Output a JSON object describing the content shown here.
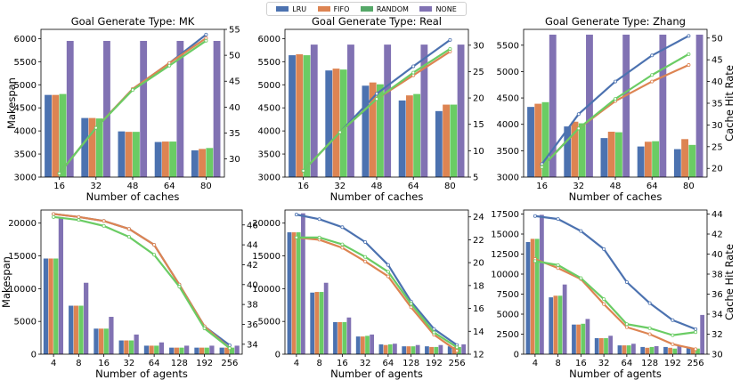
{
  "legend": {
    "placement": "top-center",
    "items": [
      {
        "label": "LRU",
        "color": "#4C72B0"
      },
      {
        "label": "FIFO",
        "color": "#DD8452"
      },
      {
        "label": "RANDOM",
        "color": "#55A868"
      },
      {
        "label": "NONE",
        "color": "#8172B3"
      }
    ]
  },
  "colors": {
    "LRU": "#4C72B0",
    "FIFO": "#DD8452",
    "RANDOM": "#55A868",
    "NONE": "#8172B3",
    "lineRANDOM": "#6ACC64"
  },
  "chart_data": [
    {
      "type": "bar+line",
      "title": "Goal Generate Type: MK",
      "xlabel": "Number of caches",
      "ylabel": "Makespan",
      "y2label": "",
      "categories": [
        "16",
        "32",
        "48",
        "64",
        "80"
      ],
      "ylim": [
        3000,
        6200
      ],
      "yticks": [
        3000,
        3500,
        4000,
        4500,
        5000,
        5500,
        6000
      ],
      "y2lim": [
        26.5,
        55
      ],
      "y2ticks": [
        30,
        35,
        40,
        45,
        50,
        55
      ],
      "bars": [
        {
          "name": "LRU",
          "values": [
            4780,
            4280,
            3990,
            3760,
            3580
          ]
        },
        {
          "name": "FIFO",
          "values": [
            4780,
            4280,
            3980,
            3770,
            3610
          ]
        },
        {
          "name": "RANDOM",
          "values": [
            4800,
            4270,
            3980,
            3770,
            3630
          ]
        },
        {
          "name": "NONE",
          "values": [
            5950,
            5950,
            5950,
            5950,
            5950
          ]
        }
      ],
      "lines": [
        {
          "name": "LRU",
          "values": [
            27.2,
            36,
            43.5,
            48.5,
            54.0
          ]
        },
        {
          "name": "FIFO",
          "values": [
            27.2,
            36,
            43.5,
            48.5,
            53.3
          ]
        },
        {
          "name": "RANDOM",
          "values": [
            27.2,
            36,
            43.3,
            48.0,
            52.8
          ]
        }
      ]
    },
    {
      "type": "bar+line",
      "title": "Goal Generate Type: Real",
      "xlabel": "Number of caches",
      "ylabel": "",
      "y2label": "",
      "categories": [
        "16",
        "32",
        "48",
        "64",
        "80"
      ],
      "ylim": [
        3000,
        6200
      ],
      "yticks": [
        3000,
        3500,
        4000,
        4500,
        5000,
        5500,
        6000
      ],
      "y2lim": [
        5,
        33
      ],
      "y2ticks": [
        5,
        10,
        15,
        20,
        25,
        30
      ],
      "bars": [
        {
          "name": "LRU",
          "values": [
            5640,
            5310,
            4980,
            4660,
            4430
          ]
        },
        {
          "name": "FIFO",
          "values": [
            5660,
            5350,
            5050,
            4770,
            4570
          ]
        },
        {
          "name": "RANDOM",
          "values": [
            5640,
            5330,
            5010,
            4800,
            4570
          ]
        },
        {
          "name": "NONE",
          "values": [
            5870,
            5870,
            5870,
            5870,
            5870
          ]
        }
      ],
      "lines": [
        {
          "name": "LRU",
          "values": [
            6.2,
            13.5,
            20.8,
            26.0,
            31.0
          ]
        },
        {
          "name": "FIFO",
          "values": [
            6.2,
            13.5,
            19.8,
            24.3,
            28.8
          ]
        },
        {
          "name": "RANDOM",
          "values": [
            6.2,
            13.5,
            19.8,
            24.8,
            29.3
          ]
        }
      ]
    },
    {
      "type": "bar+line",
      "title": "Goal Generate Type: Zhang",
      "xlabel": "Number of caches",
      "ylabel": "",
      "y2label": "Cache Hit Rate",
      "categories": [
        "16",
        "32",
        "48",
        "64",
        "80"
      ],
      "ylim": [
        3000,
        5800
      ],
      "yticks": [
        3000,
        3500,
        4000,
        4500,
        5000,
        5500
      ],
      "y2lim": [
        18,
        52
      ],
      "y2ticks": [
        20,
        25,
        30,
        35,
        40,
        45,
        50
      ],
      "bars": [
        {
          "name": "LRU",
          "values": [
            4330,
            3960,
            3740,
            3580,
            3530
          ]
        },
        {
          "name": "FIFO",
          "values": [
            4390,
            4050,
            3860,
            3670,
            3720
          ]
        },
        {
          "name": "RANDOM",
          "values": [
            4420,
            4020,
            3850,
            3680,
            3610
          ]
        },
        {
          "name": "NONE",
          "values": [
            5700,
            5700,
            5700,
            5700,
            5700
          ]
        }
      ],
      "lines": [
        {
          "name": "LRU",
          "values": [
            21.0,
            32.5,
            40.0,
            46.0,
            50.5
          ]
        },
        {
          "name": "FIFO",
          "values": [
            20.3,
            29.2,
            35.5,
            40.0,
            43.8
          ]
        },
        {
          "name": "RANDOM",
          "values": [
            20.3,
            29.2,
            36.0,
            41.5,
            46.3
          ]
        }
      ]
    },
    {
      "type": "bar+line",
      "title": "",
      "xlabel": "Number of agents",
      "ylabel": "Makespan",
      "y2label": "",
      "categories": [
        "4",
        "8",
        "16",
        "32",
        "64",
        "128",
        "192",
        "256"
      ],
      "ylim": [
        0,
        22000
      ],
      "yticks": [
        0,
        5000,
        10000,
        15000,
        20000
      ],
      "y2lim": [
        33,
        47.5
      ],
      "y2ticks": [
        34,
        36,
        38,
        40,
        42,
        44,
        46
      ],
      "bars": [
        {
          "name": "LRU",
          "values": [
            14600,
            7400,
            3900,
            2100,
            1300,
            1000,
            1000,
            1000
          ]
        },
        {
          "name": "FIFO",
          "values": [
            14600,
            7400,
            3900,
            2100,
            1300,
            1000,
            1000,
            1000
          ]
        },
        {
          "name": "RANDOM",
          "values": [
            14600,
            7400,
            3900,
            2100,
            1300,
            1000,
            1000,
            1000
          ]
        },
        {
          "name": "NONE",
          "values": [
            20800,
            10900,
            5700,
            3000,
            1800,
            1300,
            1300,
            1300
          ]
        }
      ],
      "lines": [
        {
          "name": "LRU",
          "values": [
            47.1,
            46.8,
            46.4,
            45.6,
            44.0,
            40.0,
            35.8,
            33.9
          ]
        },
        {
          "name": "FIFO",
          "values": [
            47.1,
            46.8,
            46.4,
            45.6,
            44.0,
            40.0,
            35.8,
            33.6
          ]
        },
        {
          "name": "RANDOM",
          "values": [
            46.8,
            46.5,
            45.9,
            44.8,
            43.0,
            39.8,
            35.6,
            33.6
          ]
        }
      ]
    },
    {
      "type": "bar+line",
      "title": "",
      "xlabel": "Number of agents",
      "ylabel": "",
      "y2label": "",
      "categories": [
        "4",
        "8",
        "16",
        "32",
        "64",
        "128",
        "192",
        "256"
      ],
      "ylim": [
        0,
        22000
      ],
      "yticks": [
        0,
        5000,
        10000,
        15000,
        20000
      ],
      "y2lim": [
        12,
        24.6
      ],
      "y2ticks": [
        12,
        14,
        16,
        18,
        20,
        22,
        24
      ],
      "bars": [
        {
          "name": "LRU",
          "values": [
            18600,
            9400,
            4900,
            2700,
            1500,
            1200,
            1200,
            1200
          ]
        },
        {
          "name": "FIFO",
          "values": [
            18600,
            9500,
            4900,
            2700,
            1400,
            1200,
            1100,
            1100
          ]
        },
        {
          "name": "RANDOM",
          "values": [
            18600,
            9500,
            4900,
            2800,
            1500,
            1200,
            1100,
            1100
          ]
        },
        {
          "name": "NONE",
          "values": [
            21500,
            10900,
            5600,
            3000,
            1600,
            1400,
            1400,
            1500
          ]
        }
      ],
      "lines": [
        {
          "name": "LRU",
          "values": [
            24.2,
            23.8,
            23.1,
            21.8,
            19.8,
            16.6,
            14.2,
            12.8
          ]
        },
        {
          "name": "FIFO",
          "values": [
            22.2,
            22.0,
            21.3,
            20.1,
            18.8,
            16.1,
            13.7,
            12.3
          ]
        },
        {
          "name": "RANDOM",
          "values": [
            22.2,
            22.2,
            21.6,
            20.5,
            19.2,
            16.4,
            13.9,
            12.6
          ]
        }
      ]
    },
    {
      "type": "bar+line",
      "title": "",
      "xlabel": "Number of agents",
      "ylabel": "",
      "y2label": "Cache Hit Rate",
      "categories": [
        "4",
        "8",
        "16",
        "32",
        "64",
        "128",
        "192",
        "256"
      ],
      "ylim": [
        0,
        18000
      ],
      "yticks": [
        0,
        2500,
        5000,
        7500,
        10000,
        12500,
        15000,
        17500
      ],
      "y2lim": [
        30,
        44.4
      ],
      "y2ticks": [
        30,
        32,
        34,
        36,
        38,
        40,
        42,
        44
      ],
      "bars": [
        {
          "name": "LRU",
          "values": [
            14000,
            7100,
            3700,
            2000,
            1100,
            900,
            900,
            900
          ]
        },
        {
          "name": "FIFO",
          "values": [
            14400,
            7300,
            3700,
            2000,
            1100,
            800,
            800,
            700
          ]
        },
        {
          "name": "RANDOM",
          "values": [
            14400,
            7300,
            3800,
            2000,
            1100,
            900,
            700,
            700
          ]
        },
        {
          "name": "NONE",
          "values": [
            17400,
            8700,
            4400,
            2300,
            1300,
            1000,
            1000,
            4900
          ]
        }
      ],
      "lines": [
        {
          "name": "LRU",
          "values": [
            43.8,
            43.5,
            42.3,
            40.5,
            37.2,
            35.1,
            33.4,
            32.5
          ]
        },
        {
          "name": "FIFO",
          "values": [
            39.5,
            38.6,
            37.5,
            35.0,
            32.7,
            32.0,
            31.0,
            30.5
          ]
        },
        {
          "name": "RANDOM",
          "values": [
            39.3,
            38.9,
            37.6,
            35.5,
            33.0,
            32.6,
            31.9,
            32.2
          ]
        }
      ]
    }
  ]
}
